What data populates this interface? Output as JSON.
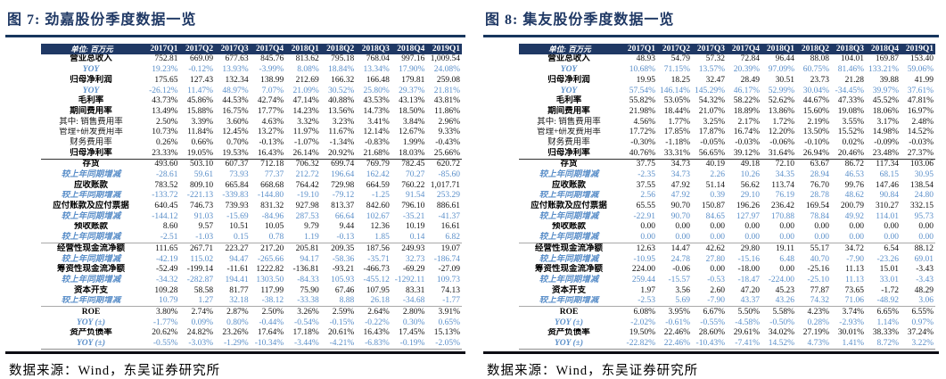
{
  "colors": {
    "navy": "#1F3864",
    "rule": "#17365D",
    "blue": "#5B8FC9"
  },
  "panels": [
    {
      "title": "图 7: 劲嘉股份季度数据一览",
      "unit_label": "单位: 百万元",
      "columns": [
        "2017Q1",
        "2017Q2",
        "2017Q3",
        "2017Q4",
        "2018Q1",
        "2018Q2",
        "2018Q3",
        "2018Q4",
        "2019Q1"
      ],
      "rows": [
        {
          "label": "营业总收入",
          "style": "bold",
          "values": [
            "752.81",
            "669.09",
            "677.63",
            "845.76",
            "813.62",
            "795.18",
            "768.04",
            "997.16",
            "1,009.54"
          ]
        },
        {
          "label": "YOY",
          "style": "blue",
          "values": [
            "19.23%",
            "-0.12%",
            "13.93%",
            "-3.99%",
            "8.08%",
            "18.84%",
            "13.34%",
            "17.90%",
            "24.08%"
          ]
        },
        {
          "label": "归母净利润",
          "style": "bold",
          "values": [
            "175.65",
            "127.43",
            "132.34",
            "138.99",
            "212.69",
            "166.32",
            "166.48",
            "179.81",
            "259.08"
          ]
        },
        {
          "label": "YOY",
          "style": "blue",
          "values": [
            "-26.12%",
            "11.47%",
            "48.97%",
            "7.07%",
            "21.09%",
            "30.52%",
            "25.80%",
            "29.37%",
            "21.81%"
          ]
        },
        {
          "label": "毛利率",
          "style": "bold",
          "values": [
            "43.73%",
            "45.86%",
            "44.53%",
            "42.74%",
            "47.14%",
            "40.88%",
            "43.53%",
            "43.13%",
            "43.81%"
          ]
        },
        {
          "label": "期间费用率",
          "style": "bold",
          "values": [
            "13.49%",
            "15.88%",
            "16.75%",
            "17.77%",
            "14.23%",
            "13.56%",
            "14.73%",
            "18.50%",
            "11.86%"
          ]
        },
        {
          "label": "其中: 销售费用率",
          "style": "plain",
          "values": [
            "2.50%",
            "3.39%",
            "3.60%",
            "4.63%",
            "3.32%",
            "3.23%",
            "3.41%",
            "3.84%",
            "2.96%"
          ]
        },
        {
          "label": "管理+研发费用率",
          "style": "plain",
          "values": [
            "10.73%",
            "11.84%",
            "12.45%",
            "13.27%",
            "11.97%",
            "11.67%",
            "12.14%",
            "12.67%",
            "9.33%"
          ]
        },
        {
          "label": "财务费用率",
          "style": "plain",
          "values": [
            "0.26%",
            "0.66%",
            "0.70%",
            "-0.13%",
            "-1.07%",
            "-1.34%",
            "-0.83%",
            "1.99%",
            "-0.43%"
          ]
        },
        {
          "label": "归母净利率",
          "style": "bold",
          "sep_after": "dark",
          "values": [
            "23.33%",
            "19.05%",
            "19.53%",
            "16.43%",
            "26.14%",
            "20.92%",
            "21.68%",
            "18.03%",
            "25.66%"
          ]
        },
        {
          "label": "存货",
          "style": "bold",
          "values": [
            "493.60",
            "503.10",
            "607.37",
            "712.18",
            "706.32",
            "699.74",
            "769.79",
            "782.45",
            "620.72"
          ]
        },
        {
          "label": "较上年同期增减",
          "style": "blue",
          "values": [
            "-28.61",
            "59.61",
            "73.93",
            "77.37",
            "212.72",
            "196.64",
            "162.42",
            "70.27",
            "-85.60"
          ]
        },
        {
          "label": "应收账款",
          "style": "bold",
          "values": [
            "783.52",
            "809.10",
            "665.84",
            "668.68",
            "764.42",
            "729.98",
            "664.59",
            "760.22",
            "1,017.71"
          ]
        },
        {
          "label": "较上年同期增减",
          "style": "blue",
          "values": [
            "-133.72",
            "-221.13",
            "-339.83",
            "-144.80",
            "-19.10",
            "-79.12",
            "-1.25",
            "91.54",
            "253.29"
          ]
        },
        {
          "label": "应付账款及应付票据",
          "style": "bold",
          "values": [
            "640.45",
            "746.73",
            "739.93",
            "831.32",
            "927.98",
            "813.37",
            "842.60",
            "796.10",
            "886.61"
          ]
        },
        {
          "label": "较上年同期增减",
          "style": "blue",
          "values": [
            "-144.12",
            "91.03",
            "-15.69",
            "-84.96",
            "287.53",
            "66.64",
            "102.67",
            "-35.21",
            "-41.37"
          ]
        },
        {
          "label": "预收账款",
          "style": "bold",
          "values": [
            "8.60",
            "9.57",
            "10.51",
            "10.05",
            "9.79",
            "9.44",
            "12.36",
            "10.19",
            "16.61"
          ]
        },
        {
          "label": "较上年同期增减",
          "style": "blue",
          "sep_after": "grey",
          "values": [
            "-2.51",
            "-1.03",
            "0.15",
            "0.78",
            "1.19",
            "-0.13",
            "1.85",
            "0.14",
            "6.82"
          ]
        },
        {
          "label": "经营性现金流净额",
          "style": "bold",
          "values": [
            "111.65",
            "267.71",
            "223.27",
            "217.20",
            "205.81",
            "209.35",
            "187.56",
            "249.93",
            "19.07"
          ]
        },
        {
          "label": "较上年同期增减",
          "style": "blue",
          "values": [
            "-42.19",
            "115.02",
            "94.47",
            "-265.66",
            "94.17",
            "-58.36",
            "-35.71",
            "32.73",
            "-186.74"
          ]
        },
        {
          "label": "筹资性现金流净额",
          "style": "bold",
          "values": [
            "-52.49",
            "-199.14",
            "-11.61",
            "1222.82",
            "-136.81",
            "-93.21",
            "-466.73",
            "-69.29",
            "-27.09"
          ]
        },
        {
          "label": "较上年同期增减",
          "style": "blue",
          "values": [
            "-34.32",
            "-282.87",
            "194.41",
            "1303.50",
            "-84.33",
            "105.93",
            "-455.12",
            "-1292.11",
            "109.73"
          ]
        },
        {
          "label": "资本开支",
          "style": "bold",
          "values": [
            "109.28",
            "58.58",
            "81.77",
            "117.99",
            "75.90",
            "67.46",
            "107.95",
            "83.31",
            "74.13"
          ]
        },
        {
          "label": "较上年同期增减",
          "style": "blue",
          "sep_after": "grey",
          "values": [
            "10.79",
            "1.27",
            "32.18",
            "-38.12",
            "-33.38",
            "8.88",
            "26.18",
            "-34.68",
            "-1.77"
          ]
        },
        {
          "label": "ROE",
          "style": "bold",
          "values": [
            "3.80%",
            "2.74%",
            "2.87%",
            "2.50%",
            "3.26%",
            "2.59%",
            "2.64%",
            "2.80%",
            "3.91%"
          ]
        },
        {
          "label": "YOY (±)",
          "style": "blue",
          "values": [
            "-1.77%",
            "0.09%",
            "0.80%",
            "-0.44%",
            "-0.54%",
            "-0.15%",
            "-0.22%",
            "0.30%",
            "0.65%"
          ]
        },
        {
          "label": "资产负债率",
          "style": "bold",
          "values": [
            "20.62%",
            "24.82%",
            "23.26%",
            "17.64%",
            "17.18%",
            "20.61%",
            "16.43%",
            "17.45%",
            "15.13%"
          ]
        },
        {
          "label": "YOY (±)",
          "style": "blue",
          "values": [
            "-0.55%",
            "-3.03%",
            "-1.29%",
            "-10.34%",
            "-3.44%",
            "-4.21%",
            "-6.83%",
            "-0.19%",
            "-2.05%"
          ]
        }
      ],
      "source": "数据来源：Wind，东吴证券研究所"
    },
    {
      "title": "图 8: 集友股份季度数据一览",
      "unit_label": "单位: 百万元",
      "columns": [
        "2017Q1",
        "2017Q2",
        "2017Q3",
        "2017Q4",
        "2018Q1",
        "2018Q2",
        "2018Q3",
        "2018Q4",
        "2019Q1"
      ],
      "rows": [
        {
          "label": "营业总收入",
          "style": "bold",
          "values": [
            "48.93",
            "54.79",
            "57.32",
            "72.84",
            "96.44",
            "88.08",
            "104.01",
            "169.87",
            "153.40"
          ]
        },
        {
          "label": "YOY",
          "style": "blue",
          "values": [
            "10.68%",
            "71.15%",
            "13.57%",
            "20.39%",
            "97.09%",
            "60.75%",
            "81.46%",
            "133.21%",
            "59.06%"
          ]
        },
        {
          "label": "归母净利润",
          "style": "bold",
          "values": [
            "19.95",
            "18.25",
            "32.47",
            "28.49",
            "30.51",
            "23.73",
            "21.28",
            "39.88",
            "41.99"
          ]
        },
        {
          "label": "YOY",
          "style": "blue",
          "values": [
            "57.54%",
            "146.14%",
            "145.29%",
            "46.17%",
            "52.99%",
            "30.04%",
            "-34.45%",
            "39.97%",
            "37.61%"
          ]
        },
        {
          "label": "毛利率",
          "style": "bold",
          "values": [
            "55.82%",
            "53.05%",
            "54.32%",
            "58.22%",
            "52.62%",
            "44.67%",
            "47.33%",
            "45.52%",
            "47.81%"
          ]
        },
        {
          "label": "期间费用率",
          "style": "bold",
          "values": [
            "21.98%",
            "18.44%",
            "21.07%",
            "18.89%",
            "13.86%",
            "15.60%",
            "19.08%",
            "18.06%",
            "16.97%"
          ]
        },
        {
          "label": "其中: 销售费用率",
          "style": "plain",
          "values": [
            "4.56%",
            "1.77%",
            "3.25%",
            "2.17%",
            "1.72%",
            "2.19%",
            "3.55%",
            "3.17%",
            "2.48%"
          ]
        },
        {
          "label": "管理+研发费用率",
          "style": "plain",
          "values": [
            "17.72%",
            "17.85%",
            "17.87%",
            "16.74%",
            "12.20%",
            "13.50%",
            "15.52%",
            "14.98%",
            "14.52%"
          ]
        },
        {
          "label": "财务费用率",
          "style": "plain",
          "values": [
            "-0.30%",
            "-1.18%",
            "-0.05%",
            "-0.03%",
            "-0.06%",
            "-0.10%",
            "0.02%",
            "-0.09%",
            "-0.03%"
          ]
        },
        {
          "label": "归母净利率",
          "style": "bold",
          "sep_after": "dark",
          "values": [
            "40.76%",
            "33.31%",
            "56.65%",
            "39.12%",
            "31.64%",
            "26.94%",
            "20.46%",
            "23.48%",
            "27.37%"
          ]
        },
        {
          "label": "存货",
          "style": "bold",
          "values": [
            "37.75",
            "34.73",
            "40.19",
            "49.18",
            "72.10",
            "63.67",
            "86.72",
            "117.34",
            "103.06"
          ]
        },
        {
          "label": "较上年同期增减",
          "style": "blue",
          "values": [
            "-2.35",
            "34.73",
            "2.26",
            "10.26",
            "34.35",
            "28.94",
            "46.53",
            "68.15",
            "30.95"
          ]
        },
        {
          "label": "应收账款",
          "style": "bold",
          "values": [
            "37.55",
            "47.92",
            "51.14",
            "56.62",
            "113.74",
            "76.70",
            "99.76",
            "147.46",
            "138.54"
          ]
        },
        {
          "label": "较上年同期增减",
          "style": "blue",
          "values": [
            "2.56",
            "47.92",
            "0.39",
            "29.10",
            "76.19",
            "28.78",
            "48.62",
            "90.84",
            "24.80"
          ]
        },
        {
          "label": "应付账款及应付票据",
          "style": "bold",
          "values": [
            "65.55",
            "90.70",
            "150.87",
            "196.26",
            "236.42",
            "169.54",
            "200.79",
            "310.27",
            "332.15"
          ]
        },
        {
          "label": "较上年同期增减",
          "style": "blue",
          "values": [
            "-22.91",
            "90.70",
            "84.65",
            "127.97",
            "170.88",
            "78.84",
            "49.92",
            "114.01",
            "95.73"
          ]
        },
        {
          "label": "预收账款",
          "style": "bold",
          "values": [
            "0.00",
            "0.00",
            "0.00",
            "0.00",
            "0.00",
            "0.00",
            "0.00",
            "0.00",
            "0.00"
          ]
        },
        {
          "label": "较上年同期增减",
          "style": "blue",
          "sep_after": "grey",
          "values": [
            "0.00",
            "0.00",
            "0.00",
            "0.00",
            "0.00",
            "0.00",
            "0.00",
            "0.00",
            "0.00"
          ]
        },
        {
          "label": "经营性现金流净额",
          "style": "bold",
          "values": [
            "12.63",
            "14.47",
            "42.62",
            "29.80",
            "19.11",
            "55.17",
            "34.72",
            "6.54",
            "88.12"
          ]
        },
        {
          "label": "较上年同期增减",
          "style": "blue",
          "values": [
            "-10.95",
            "24.78",
            "27.80",
            "-15.16",
            "6.48",
            "40.70",
            "-7.90",
            "-23.26",
            "69.01"
          ]
        },
        {
          "label": "筹资性现金流净额",
          "style": "bold",
          "values": [
            "224.00",
            "-0.06",
            "0.00",
            "-18.00",
            "0.00",
            "-25.16",
            "11.13",
            "15.01",
            "-3.43"
          ]
        },
        {
          "label": "较上年同期增减",
          "style": "blue",
          "values": [
            "259.44",
            "-15.57",
            "-0.53",
            "-18.47",
            "-224.00",
            "-25.10",
            "11.13",
            "33.01",
            "-3.43"
          ]
        },
        {
          "label": "资本开支",
          "style": "bold",
          "values": [
            "1.97",
            "3.56",
            "2.60",
            "47.20",
            "45.23",
            "77.87",
            "73.65",
            "-1.72",
            "48.29"
          ]
        },
        {
          "label": "较上年同期增减",
          "style": "blue",
          "sep_after": "grey",
          "values": [
            "-2.53",
            "5.69",
            "-7.90",
            "43.37",
            "43.26",
            "74.32",
            "71.06",
            "-48.92",
            "3.06"
          ]
        },
        {
          "label": "ROE",
          "style": "bold",
          "values": [
            "6.08%",
            "3.95%",
            "6.67%",
            "5.50%",
            "5.58%",
            "4.23%",
            "3.74%",
            "6.65%",
            "6.55%"
          ]
        },
        {
          "label": "YOY (±)",
          "style": "blue",
          "values": [
            "-2.02%",
            "-0.61%",
            "-0.55%",
            "-4.58%",
            "-0.50%",
            "0.28%",
            "-2.93%",
            "1.14%",
            "0.97%"
          ]
        },
        {
          "label": "资产负债率",
          "style": "bold",
          "values": [
            "19.50%",
            "22.46%",
            "28.60%",
            "29.61%",
            "34.02%",
            "27.19%",
            "30.01%",
            "38.33%",
            "37.24%"
          ]
        },
        {
          "label": "YOY (±)",
          "style": "blue",
          "values": [
            "-22.82%",
            "22.46%",
            "-10.43%",
            "-7.41%",
            "14.52%",
            "4.73%",
            "1.41%",
            "8.72%",
            "3.22%"
          ]
        }
      ],
      "source": "数据来源：Wind，东吴证券研究所"
    }
  ]
}
